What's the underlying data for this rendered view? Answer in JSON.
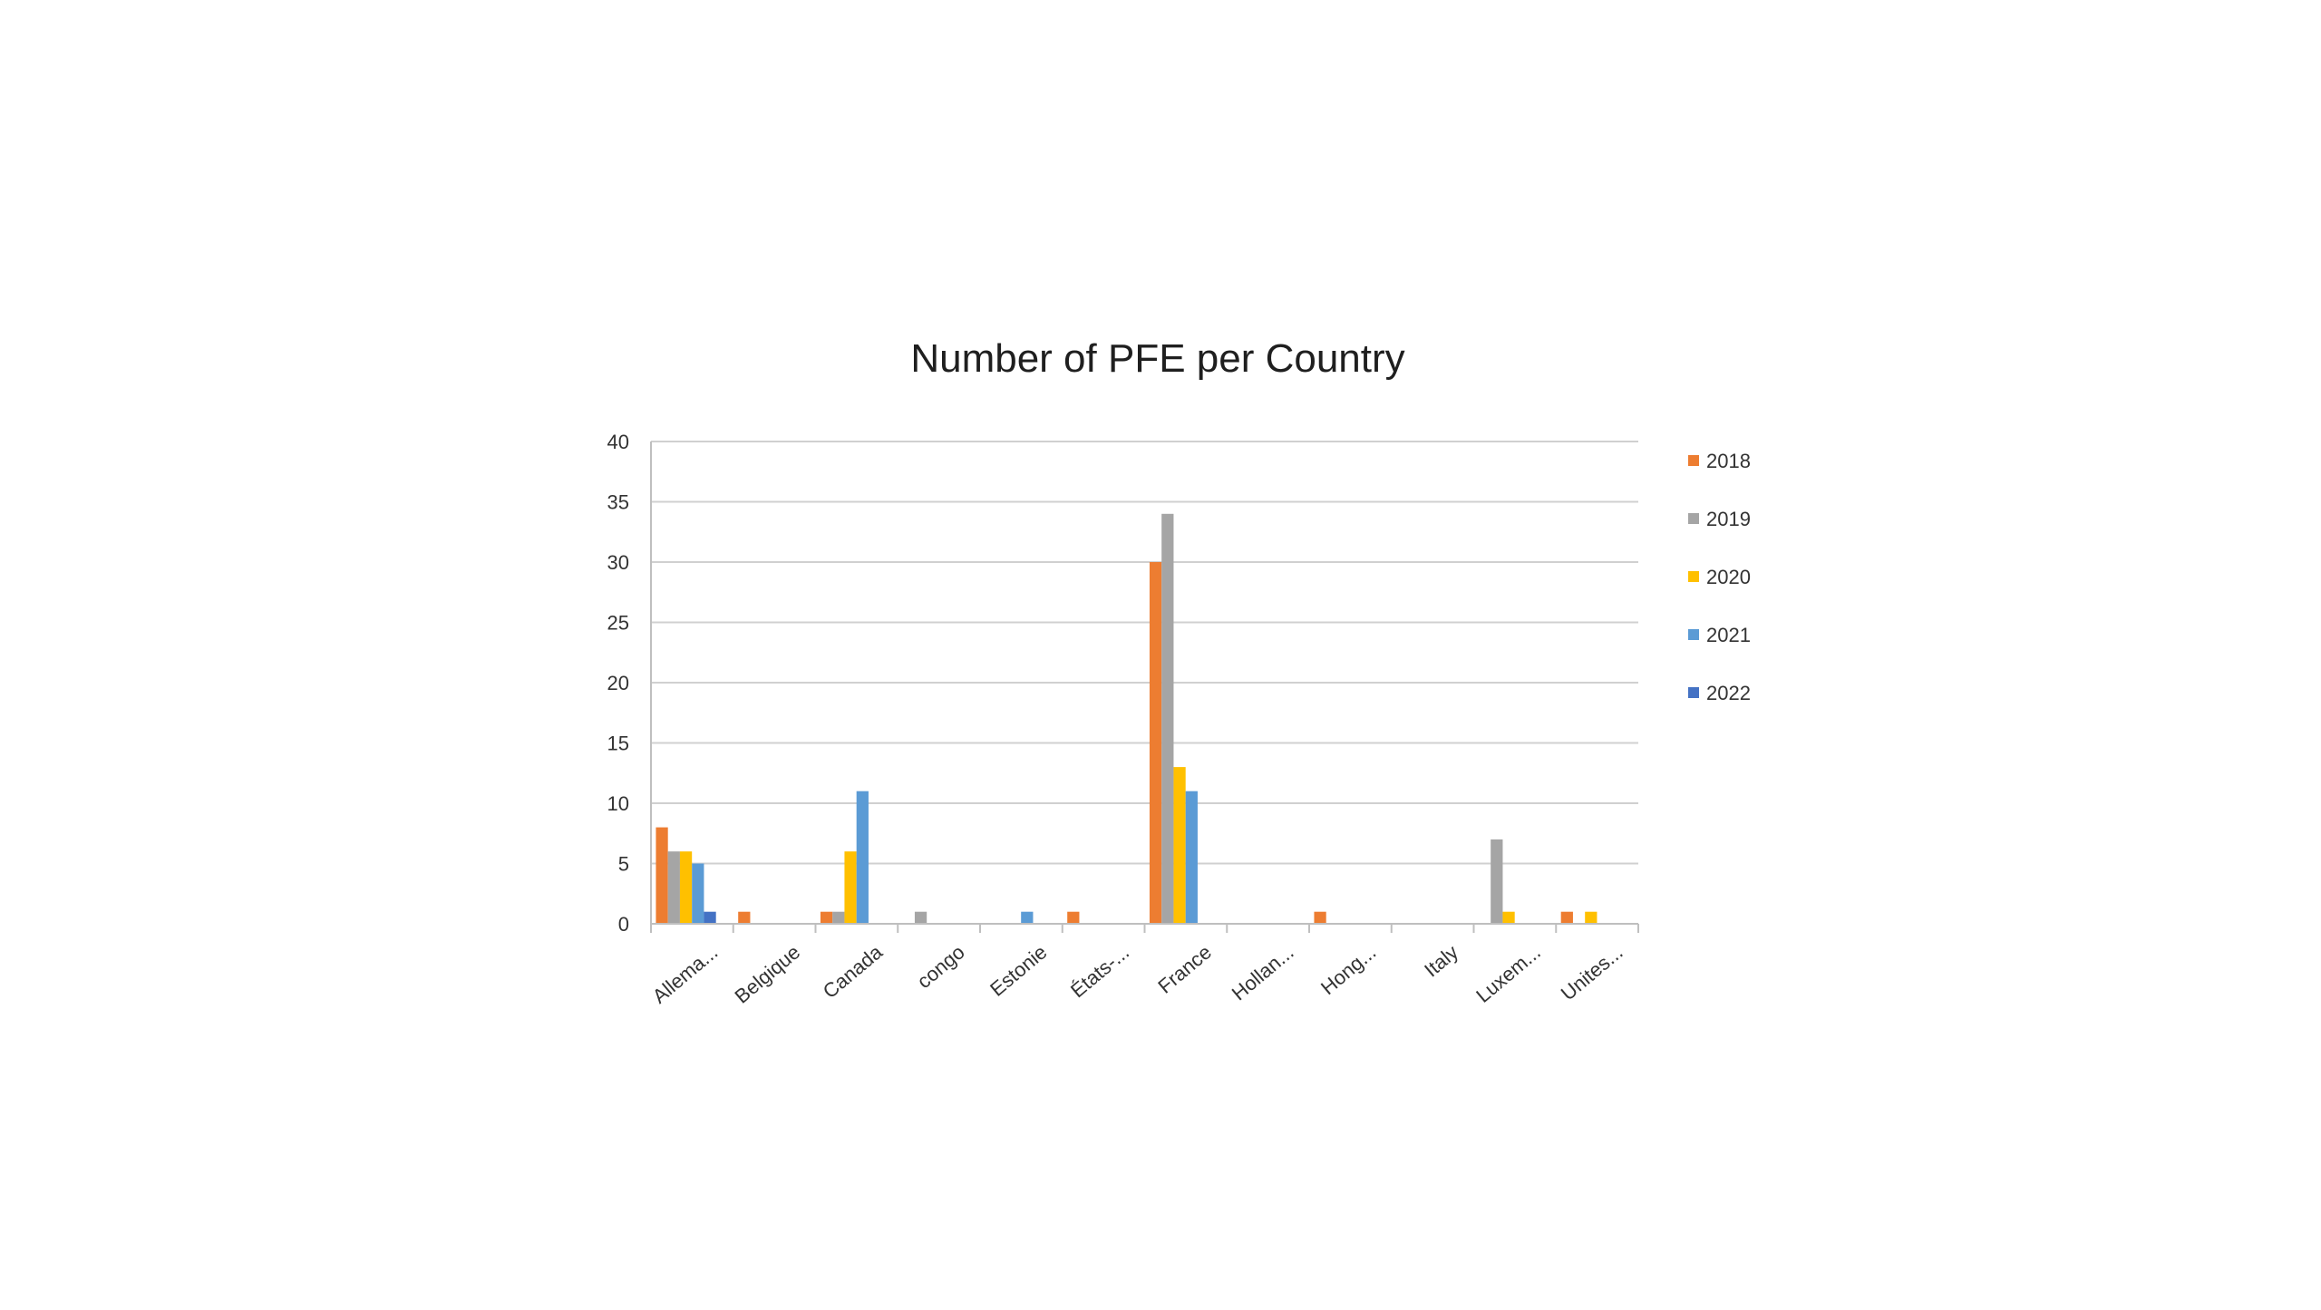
{
  "chart_data": {
    "type": "bar",
    "title": "Number of PFE per Country",
    "xlabel": "",
    "ylabel": "",
    "ylim": [
      0,
      40
    ],
    "yticks": [
      0,
      5,
      10,
      15,
      20,
      25,
      30,
      35,
      40
    ],
    "grid": true,
    "legend_position": "right",
    "categories": [
      "Allema...",
      "Belgique",
      "Canada",
      "congo",
      "Estonie",
      "États-...",
      "France",
      "Hollan...",
      "Hong...",
      "Italy",
      "Luxem...",
      "Unites..."
    ],
    "series": [
      {
        "name": "2018",
        "color": "#ED7D31",
        "values": [
          8,
          1,
          1,
          0,
          0,
          1,
          30,
          0,
          1,
          0,
          0,
          1
        ]
      },
      {
        "name": "2019",
        "color": "#A5A5A5",
        "values": [
          6,
          0,
          1,
          1,
          0,
          0,
          34,
          0,
          0,
          0,
          7,
          0
        ]
      },
      {
        "name": "2020",
        "color": "#FFC000",
        "values": [
          6,
          0,
          6,
          0,
          0,
          0,
          13,
          0,
          0,
          0,
          1,
          1
        ]
      },
      {
        "name": "2021",
        "color": "#5B9BD5",
        "values": [
          5,
          0,
          11,
          0,
          1,
          0,
          11,
          0,
          0,
          0,
          0,
          0
        ]
      },
      {
        "name": "2022",
        "color": "#4472C4",
        "values": [
          1,
          0,
          0,
          0,
          0,
          0,
          0,
          0,
          0,
          0,
          0,
          0
        ]
      }
    ]
  }
}
